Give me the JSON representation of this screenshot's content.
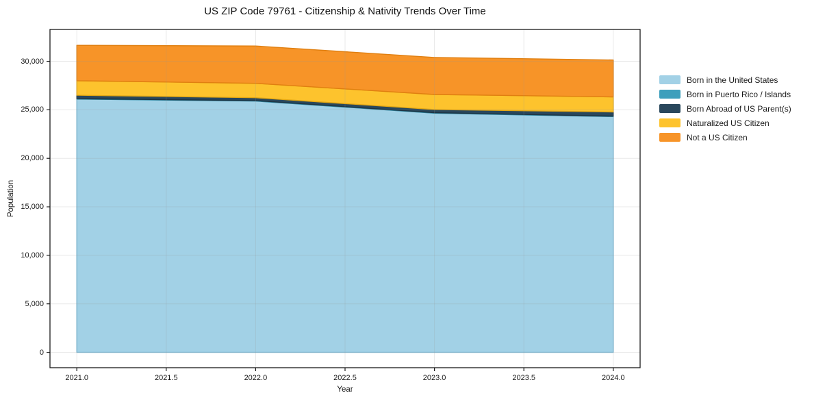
{
  "chart_data": {
    "type": "area",
    "stacked": true,
    "title": "US ZIP Code 79761 - Citizenship & Nativity Trends Over Time",
    "xlabel": "Year",
    "ylabel": "Population",
    "x": [
      2021,
      2022,
      2023,
      2024
    ],
    "series": [
      {
        "name": "Born in the United States",
        "color": "#a2d1e6",
        "edge": "#79b9d8",
        "values": [
          26100,
          25900,
          24650,
          24300
        ]
      },
      {
        "name": "Born in Puerto Rico / Islands",
        "color": "#3d9fbc",
        "edge": "#2f86a0",
        "values": [
          50,
          50,
          50,
          50
        ]
      },
      {
        "name": "Born Abroad of US Parent(s)",
        "color": "#29475c",
        "edge": "#1d3443",
        "values": [
          350,
          300,
          330,
          430
        ]
      },
      {
        "name": "Naturalized US Citizen",
        "color": "#fdc32d",
        "edge": "#e3a713",
        "values": [
          1500,
          1480,
          1550,
          1550
        ]
      },
      {
        "name": "Not a US Citizen",
        "color": "#f79428",
        "edge": "#e07f10",
        "values": [
          3650,
          3850,
          3820,
          3810
        ]
      }
    ],
    "totals": [
      31650,
      31580,
      30400,
      30140
    ],
    "x_tick_values": [
      2021.0,
      2021.5,
      2022.0,
      2022.5,
      2023.0,
      2023.5,
      2024.0
    ],
    "x_tick_labels": [
      "2021.0",
      "2021.5",
      "2022.0",
      "2022.5",
      "2023.0",
      "2023.5",
      "2024.0"
    ],
    "y_tick_values": [
      0,
      5000,
      10000,
      15000,
      20000,
      25000,
      30000
    ],
    "y_tick_labels": [
      "0",
      "5,000",
      "10,000",
      "15,000",
      "20,000",
      "25,000",
      "30,000"
    ],
    "xlim": [
      2020.85,
      2024.15
    ],
    "ylim": [
      -1585,
      33285
    ],
    "grid": true,
    "legend_position": "right-outside"
  },
  "colors": {
    "background": "#ffffff",
    "spine": "#1a1a1a",
    "grid_over_areas": "rgba(150,150,150,0.22)",
    "text": "#1a1a1a"
  }
}
